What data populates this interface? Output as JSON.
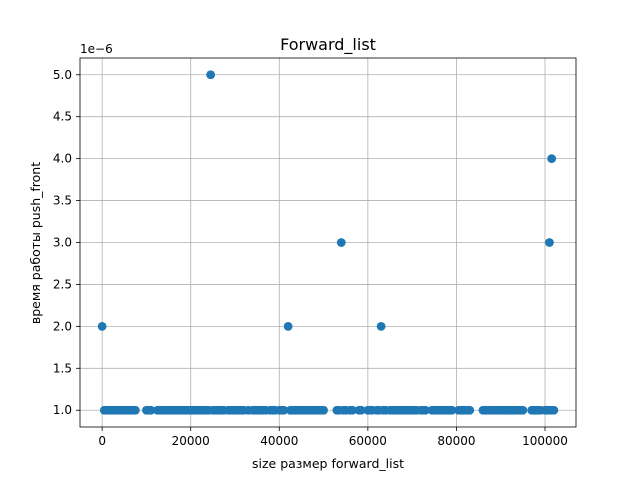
{
  "chart_data": {
    "type": "scatter",
    "title": "Forward_list",
    "xlabel": "size размер forward_list",
    "ylabel": "время работы push_front",
    "y_offset_label": "1e−6",
    "xlim": [
      -5000,
      107000
    ],
    "ylim": [
      0.8,
      5.2
    ],
    "x_ticks": [
      0,
      20000,
      40000,
      60000,
      80000,
      100000
    ],
    "x_tick_labels": [
      "0",
      "20000",
      "40000",
      "60000",
      "80000",
      "100000"
    ],
    "y_ticks": [
      1.0,
      1.5,
      2.0,
      2.5,
      3.0,
      3.5,
      4.0,
      4.5,
      5.0
    ],
    "y_tick_labels": [
      "1.0",
      "1.5",
      "2.0",
      "2.5",
      "3.0",
      "3.5",
      "4.0",
      "4.5",
      "5.0"
    ],
    "grid": true,
    "marker_color": "#1f77b4",
    "series": [
      {
        "x": [
          0,
          500,
          1000,
          1500,
          2000,
          2500,
          3000,
          3500,
          4000,
          4500,
          5000,
          5500,
          6000,
          6500,
          7000,
          7500,
          10000,
          10500,
          11000,
          12500,
          13000,
          13500,
          14000,
          14500,
          15000,
          15500,
          16000,
          16500,
          17000,
          17500,
          18000,
          18500,
          19000,
          19500,
          20000,
          20500,
          21000,
          21500,
          22000,
          22500,
          23000,
          23500,
          24000,
          24500,
          25000,
          25500,
          26000,
          26500,
          27000,
          27500,
          28500,
          29000,
          29500,
          30000,
          30500,
          31000,
          31500,
          32000,
          33000,
          34000,
          34500,
          35000,
          35500,
          36000,
          36500,
          37000,
          38000,
          38500,
          39000,
          40000,
          40500,
          41000,
          42000,
          42500,
          43000,
          43500,
          44000,
          44500,
          45000,
          45500,
          46000,
          46500,
          47000,
          47500,
          48000,
          48500,
          49000,
          49500,
          50000,
          53000,
          53500,
          54000,
          54500,
          55000,
          56000,
          56500,
          58000,
          58500,
          60000,
          60500,
          61000,
          62000,
          62500,
          63000,
          63500,
          64000,
          65000,
          65500,
          66000,
          66500,
          67000,
          67500,
          68000,
          68500,
          69000,
          69500,
          70000,
          70500,
          71000,
          72000,
          72500,
          73000,
          74500,
          75000,
          75500,
          76000,
          76500,
          77000,
          77500,
          78000,
          78500,
          79000,
          80500,
          81000,
          81500,
          82000,
          82500,
          83000,
          86000,
          86500,
          87000,
          87500,
          88000,
          88500,
          89000,
          89500,
          90000,
          90500,
          91000,
          91500,
          92000,
          92500,
          93000,
          93500,
          94000,
          94500,
          95000,
          97000,
          97500,
          98000,
          98500,
          99000,
          100000,
          100500,
          101000,
          101500,
          102000,
          101000,
          101500
        ],
        "y": [
          2.0,
          1.0,
          1.0,
          1.0,
          1.0,
          1.0,
          1.0,
          1.0,
          1.0,
          1.0,
          1.0,
          1.0,
          1.0,
          1.0,
          1.0,
          1.0,
          1.0,
          1.0,
          1.0,
          1.0,
          1.0,
          1.0,
          1.0,
          1.0,
          1.0,
          1.0,
          1.0,
          1.0,
          1.0,
          1.0,
          1.0,
          1.0,
          1.0,
          1.0,
          1.0,
          1.0,
          1.0,
          1.0,
          1.0,
          1.0,
          1.0,
          1.0,
          1.0,
          5.0,
          1.0,
          1.0,
          1.0,
          1.0,
          1.0,
          1.0,
          1.0,
          1.0,
          1.0,
          1.0,
          1.0,
          1.0,
          1.0,
          1.0,
          1.0,
          1.0,
          1.0,
          1.0,
          1.0,
          1.0,
          1.0,
          1.0,
          1.0,
          1.0,
          1.0,
          1.0,
          1.0,
          1.0,
          2.0,
          1.0,
          1.0,
          1.0,
          1.0,
          1.0,
          1.0,
          1.0,
          1.0,
          1.0,
          1.0,
          1.0,
          1.0,
          1.0,
          1.0,
          1.0,
          1.0,
          1.0,
          1.0,
          3.0,
          1.0,
          1.0,
          1.0,
          1.0,
          1.0,
          1.0,
          1.0,
          1.0,
          1.0,
          1.0,
          1.0,
          2.0,
          1.0,
          1.0,
          1.0,
          1.0,
          1.0,
          1.0,
          1.0,
          1.0,
          1.0,
          1.0,
          1.0,
          1.0,
          1.0,
          1.0,
          1.0,
          1.0,
          1.0,
          1.0,
          1.0,
          1.0,
          1.0,
          1.0,
          1.0,
          1.0,
          1.0,
          1.0,
          1.0,
          1.0,
          1.0,
          1.0,
          1.0,
          1.0,
          1.0,
          1.0,
          1.0,
          1.0,
          1.0,
          1.0,
          1.0,
          1.0,
          1.0,
          1.0,
          1.0,
          1.0,
          1.0,
          1.0,
          1.0,
          1.0,
          1.0,
          1.0,
          1.0,
          1.0,
          1.0,
          1.0,
          1.0,
          1.0,
          1.0,
          1.0,
          1.0,
          1.0,
          1.0,
          1.0,
          1.0,
          3.0,
          4.0
        ]
      }
    ]
  }
}
